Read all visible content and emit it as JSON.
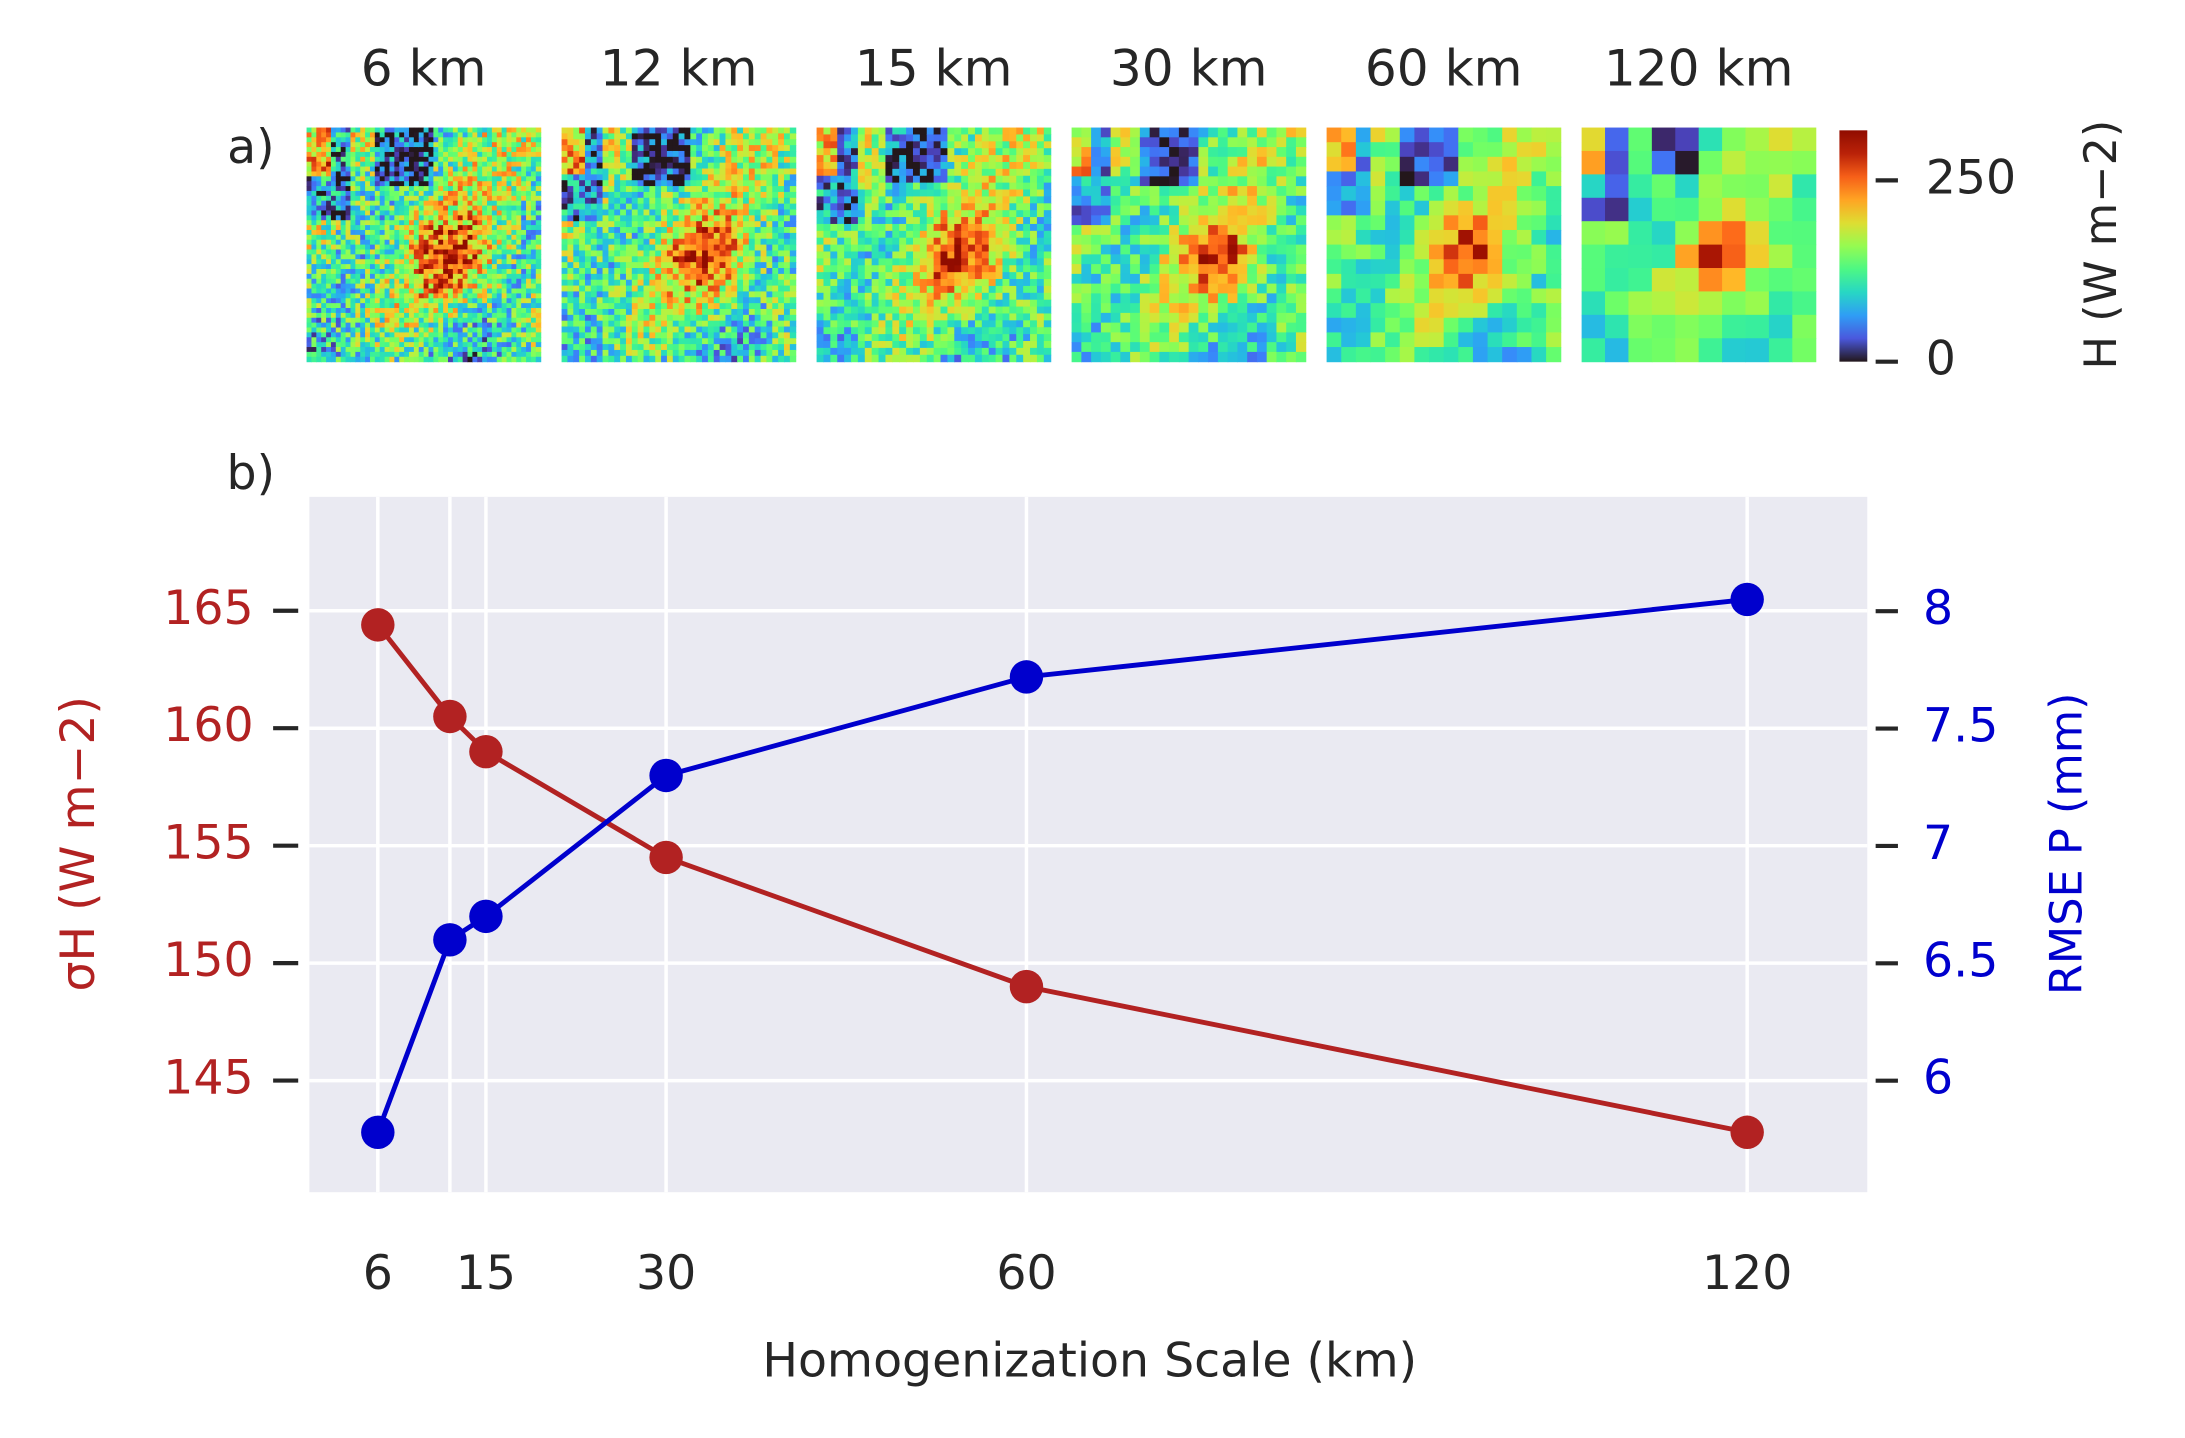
{
  "chart_data": {
    "type": "line",
    "panel_labels": [
      "a)",
      "b)"
    ],
    "map_titles": [
      "6 km",
      "12 km",
      "15 km",
      "30 km",
      "60 km",
      "120 km"
    ],
    "colorbar": {
      "label": "H (W m−2)",
      "lim": [
        0,
        319
      ],
      "ticks": [
        0,
        250
      ]
    },
    "xlabel": "Homogenization Scale (km)",
    "ylabel": "σH (W m−2)",
    "y2label": "RMSE P (mm)",
    "x": [
      6,
      12,
      15,
      30,
      60,
      120
    ],
    "series": [
      {
        "name": "σH",
        "color": "#b22222",
        "values": [
          164.4,
          160.5,
          159.0,
          154.5,
          149.0,
          142.8
        ]
      },
      {
        "name": "RMSE P",
        "color": "#0000cd",
        "axis": "y2",
        "values": [
          5.78,
          6.6,
          6.7,
          7.3,
          7.72,
          8.05
        ]
      }
    ],
    "xlim": [
      0.3,
      130
    ],
    "xticks": [
      6,
      {
        "value": 12,
        "label": null
      },
      15,
      30,
      60,
      120
    ],
    "ylim": [
      140.25,
      169.85
    ],
    "yticks": [
      145,
      150,
      155,
      160,
      165
    ],
    "y2lim": [
      5.525,
      8.487
    ],
    "y2ticks": [
      6,
      6.5,
      7,
      7.5,
      8
    ],
    "grid": true
  }
}
